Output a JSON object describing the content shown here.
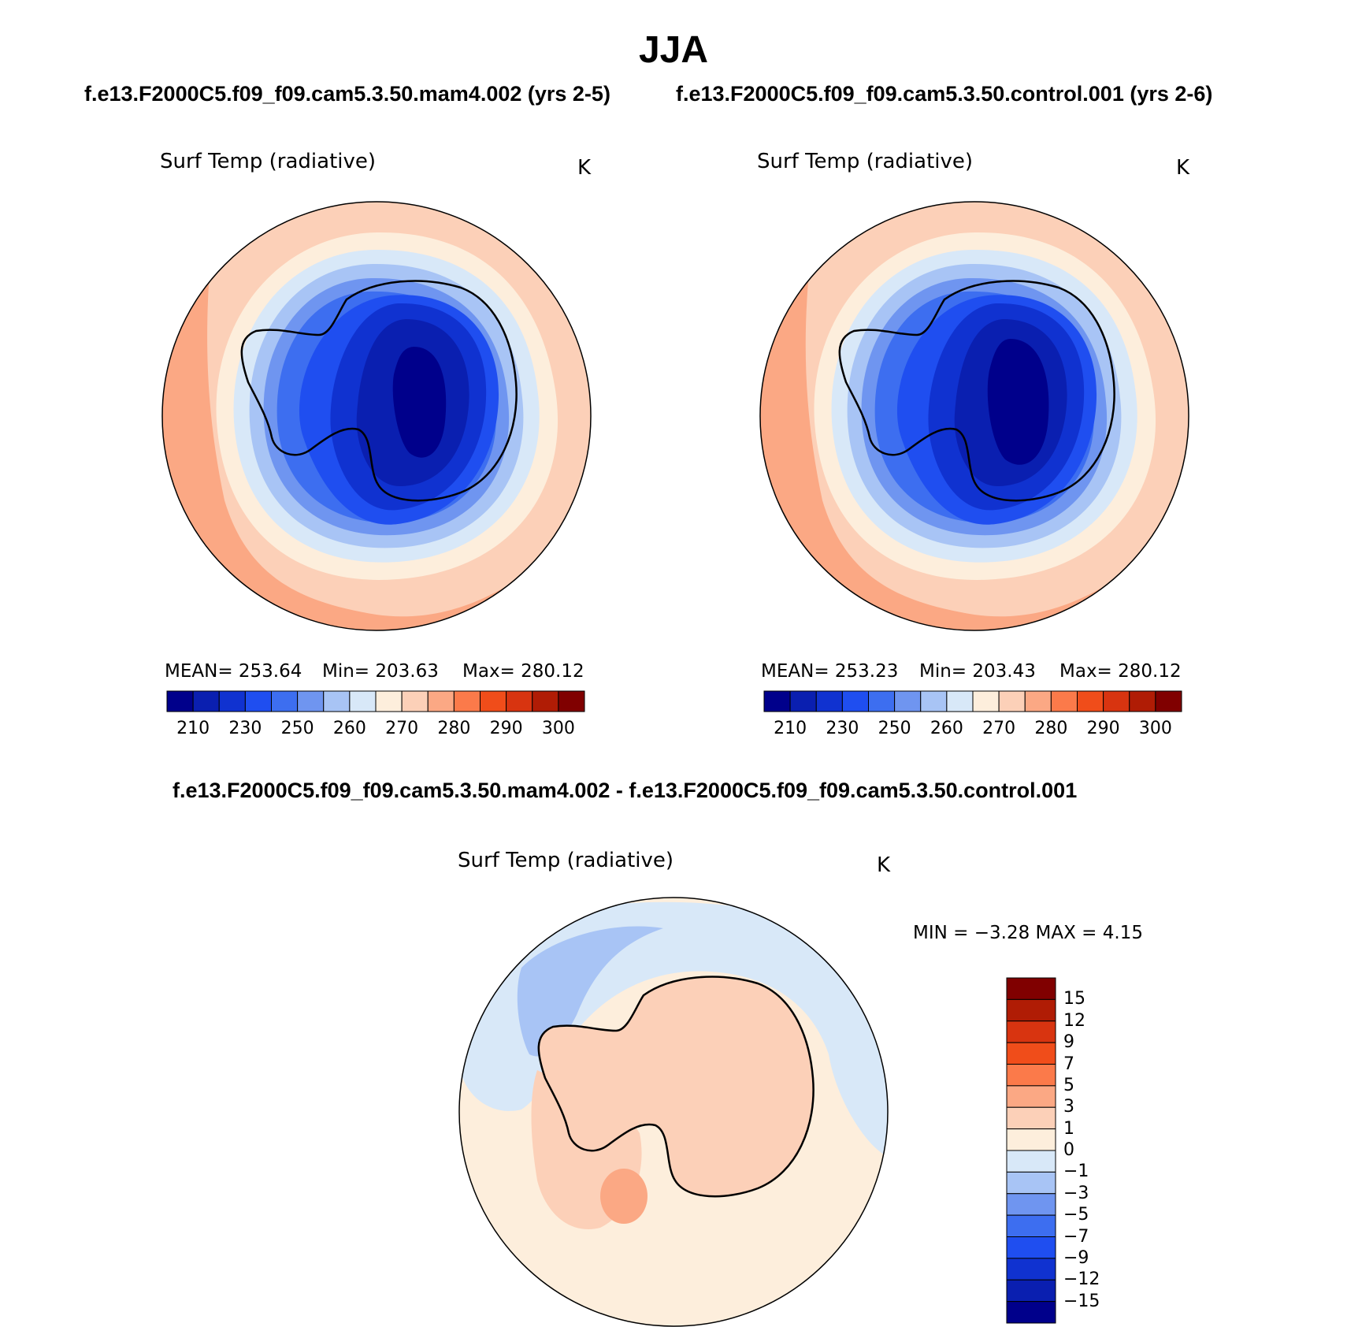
{
  "title": "JJA",
  "panels_header": {
    "left": "f.e13.F2000C5.f09_f09.cam5.3.50.mam4.002 (yrs 2-5)",
    "right": "f.e13.F2000C5.f09_f09.cam5.3.50.control.001 (yrs 2-6)"
  },
  "diff_header": "f.e13.F2000C5.f09_f09.cam5.3.50.mam4.002 - f.e13.F2000C5.f09_f09.cam5.3.50.control.001",
  "panels": [
    {
      "variable": "Surf Temp (radiative)",
      "units": "K",
      "mean": "MEAN=  253.64",
      "min": "Min=  203.63",
      "max": "Max=  280.12"
    },
    {
      "variable": "Surf Temp (radiative)",
      "units": "K",
      "mean": "MEAN=  253.23",
      "min": "Min=  203.43",
      "max": "Max=  280.12"
    }
  ],
  "diff_panel": {
    "variable": "Surf Temp (radiative)",
    "units": "K",
    "minmax": "MIN =   −3.28  MAX =    4.15"
  },
  "abs_colorbar": {
    "colors": [
      "#00008b",
      "#0a1fb0",
      "#1032d0",
      "#1f4ef0",
      "#3d6ef0",
      "#6f95f0",
      "#a8c4f5",
      "#d8e8f8",
      "#fdeedc",
      "#fcd0b8",
      "#fba884",
      "#fb7a4a",
      "#f04d1a",
      "#d83410",
      "#b01c05",
      "#800000"
    ],
    "labels": [
      "210",
      "230",
      "250",
      "260",
      "270",
      "280",
      "290",
      "300"
    ]
  },
  "diff_colorbar": {
    "colors": [
      "#800000",
      "#b01c05",
      "#d83410",
      "#f04d1a",
      "#fb7a4a",
      "#fba884",
      "#fcd0b8",
      "#fdeedc",
      "#d8e8f8",
      "#a8c4f5",
      "#6f95f0",
      "#3d6ef0",
      "#1f4ef0",
      "#1032d0",
      "#0a1fb0",
      "#00008b"
    ],
    "labels": [
      "15",
      "12",
      "9",
      "7",
      "5",
      "3",
      "1",
      "0",
      "−1",
      "−3",
      "−5",
      "−7",
      "−9",
      "−12",
      "−15"
    ]
  }
}
